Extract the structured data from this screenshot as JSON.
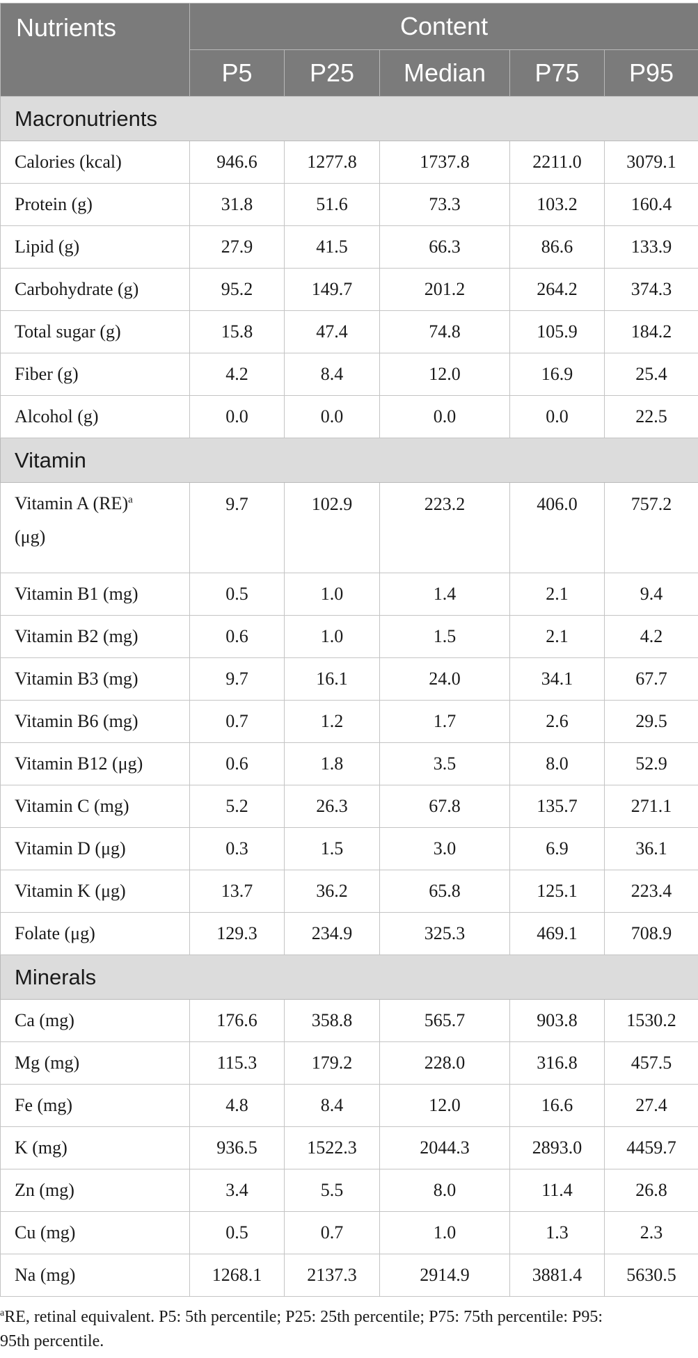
{
  "header": {
    "nutrients_label": "Nutrients",
    "content_label": "Content",
    "columns": [
      "P5",
      "P25",
      "Median",
      "P75",
      "P95"
    ]
  },
  "sections": [
    {
      "title": "Macronutrients",
      "rows": [
        {
          "label": "Calories (kcal)",
          "values": [
            "946.6",
            "1277.8",
            "1737.8",
            "2211.0",
            "3079.1"
          ]
        },
        {
          "label": "Protein (g)",
          "values": [
            "31.8",
            "51.6",
            "73.3",
            "103.2",
            "160.4"
          ]
        },
        {
          "label": "Lipid (g)",
          "values": [
            "27.9",
            "41.5",
            "66.3",
            "86.6",
            "133.9"
          ]
        },
        {
          "label": "Carbohydrate (g)",
          "values": [
            "95.2",
            "149.7",
            "201.2",
            "264.2",
            "374.3"
          ]
        },
        {
          "label": "Total sugar (g)",
          "values": [
            "15.8",
            "47.4",
            "74.8",
            "105.9",
            "184.2"
          ]
        },
        {
          "label": "Fiber (g)",
          "values": [
            "4.2",
            "8.4",
            "12.0",
            "16.9",
            "25.4"
          ]
        },
        {
          "label": "Alcohol (g)",
          "values": [
            "0.0",
            "0.0",
            "0.0",
            "0.0",
            "22.5"
          ]
        }
      ]
    },
    {
      "title": "Vitamin",
      "rows": [
        {
          "label": "Vitamin A (RE)",
          "footnote_mark": "a",
          "label_line2": "(μg)",
          "values": [
            "9.7",
            "102.9",
            "223.2",
            "406.0",
            "757.2"
          ]
        },
        {
          "label": "Vitamin B1 (mg)",
          "values": [
            "0.5",
            "1.0",
            "1.4",
            "2.1",
            "9.4"
          ]
        },
        {
          "label": "Vitamin B2 (mg)",
          "values": [
            "0.6",
            "1.0",
            "1.5",
            "2.1",
            "4.2"
          ]
        },
        {
          "label": "Vitamin B3 (mg)",
          "values": [
            "9.7",
            "16.1",
            "24.0",
            "34.1",
            "67.7"
          ]
        },
        {
          "label": "Vitamin B6 (mg)",
          "values": [
            "0.7",
            "1.2",
            "1.7",
            "2.6",
            "29.5"
          ]
        },
        {
          "label": "Vitamin B12 (μg)",
          "values": [
            "0.6",
            "1.8",
            "3.5",
            "8.0",
            "52.9"
          ]
        },
        {
          "label": "Vitamin C (mg)",
          "values": [
            "5.2",
            "26.3",
            "67.8",
            "135.7",
            "271.1"
          ]
        },
        {
          "label": "Vitamin D (μg)",
          "values": [
            "0.3",
            "1.5",
            "3.0",
            "6.9",
            "36.1"
          ]
        },
        {
          "label": "Vitamin K (μg)",
          "values": [
            "13.7",
            "36.2",
            "65.8",
            "125.1",
            "223.4"
          ]
        },
        {
          "label": "Folate (μg)",
          "values": [
            "129.3",
            "234.9",
            "325.3",
            "469.1",
            "708.9"
          ]
        }
      ]
    },
    {
      "title": "Minerals",
      "rows": [
        {
          "label": "Ca (mg)",
          "values": [
            "176.6",
            "358.8",
            "565.7",
            "903.8",
            "1530.2"
          ]
        },
        {
          "label": "Mg (mg)",
          "values": [
            "115.3",
            "179.2",
            "228.0",
            "316.8",
            "457.5"
          ]
        },
        {
          "label": "Fe (mg)",
          "values": [
            "4.8",
            "8.4",
            "12.0",
            "16.6",
            "27.4"
          ]
        },
        {
          "label": "K (mg)",
          "values": [
            "936.5",
            "1522.3",
            "2044.3",
            "2893.0",
            "4459.7"
          ]
        },
        {
          "label": "Zn (mg)",
          "values": [
            "3.4",
            "5.5",
            "8.0",
            "11.4",
            "26.8"
          ]
        },
        {
          "label": "Cu (mg)",
          "values": [
            "0.5",
            "0.7",
            "1.0",
            "1.3",
            "2.3"
          ]
        },
        {
          "label": "Na (mg)",
          "values": [
            "1268.1",
            "2137.3",
            "2914.9",
            "3881.4",
            "5630.5"
          ]
        }
      ]
    }
  ],
  "footnote": {
    "mark": "a",
    "line1": "RE, retinal equivalent. P5: 5th percentile; P25: 25th percentile; P75: 75th percentile: P95:",
    "line2": "95th percentile."
  }
}
